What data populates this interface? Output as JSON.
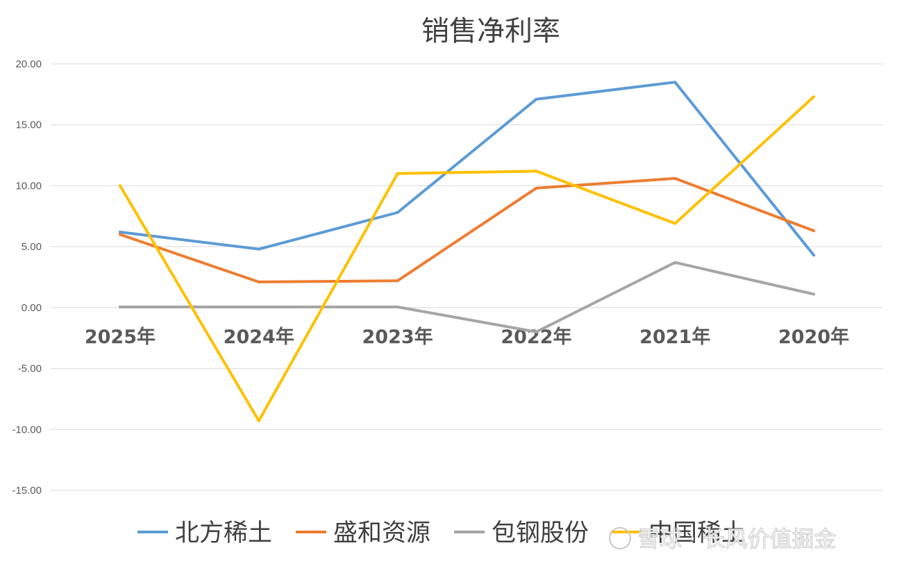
{
  "chart_data": {
    "type": "line",
    "title": "销售净利率",
    "xlabel": "",
    "ylabel": "",
    "categories": [
      "2025年",
      "2024年",
      "2023年",
      "2022年",
      "2021年",
      "2020年"
    ],
    "yticks": [
      "20.00",
      "15.00",
      "10.00",
      "5.00",
      "0.00",
      "-5.00",
      "-10.00",
      "-15.00"
    ],
    "ylim": [
      -15,
      20
    ],
    "grid": true,
    "legend_position": "bottom",
    "series": [
      {
        "name": "北方稀土",
        "color": "#5B9BD5",
        "values": [
          6.2,
          4.8,
          7.8,
          17.1,
          18.5,
          4.3
        ]
      },
      {
        "name": "盛和资源",
        "color": "#ED7D31",
        "values": [
          6.0,
          2.1,
          2.2,
          9.8,
          10.6,
          6.3
        ]
      },
      {
        "name": "包钢股份",
        "color": "#A5A5A5",
        "values": [
          0.05,
          0.05,
          0.05,
          -2.0,
          3.7,
          1.1
        ]
      },
      {
        "name": "中国稀土",
        "color": "#FFC000",
        "values": [
          10.0,
          -9.3,
          11.0,
          11.2,
          6.9,
          17.3
        ]
      }
    ]
  },
  "watermark": {
    "text": "雪球 · 长风价值掘金"
  }
}
